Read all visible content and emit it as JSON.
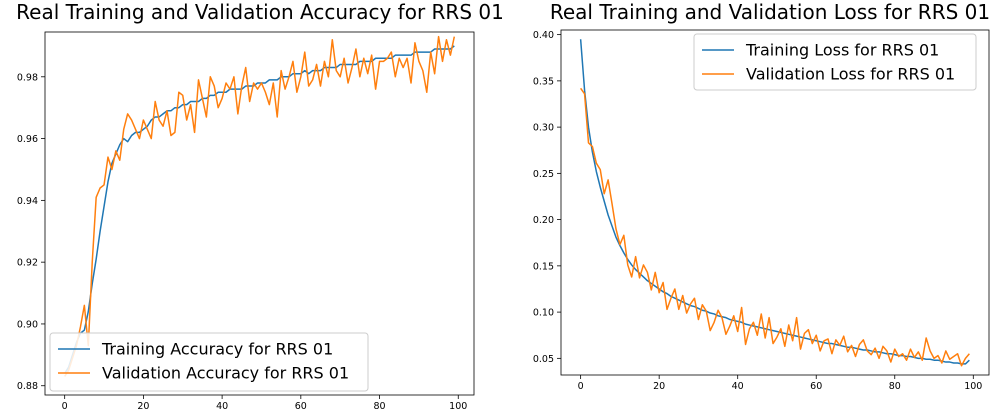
{
  "colors": {
    "training": "#1f77b4",
    "validation": "#ff7f0e"
  },
  "chart_data": [
    {
      "type": "line",
      "title": "Real Training and Validation Accuracy for RRS 01",
      "xlabel": "",
      "ylabel": "",
      "xlim": [
        -5,
        104
      ],
      "ylim": [
        0.877,
        0.9945
      ],
      "xticks": [
        0,
        20,
        40,
        60,
        80,
        100
      ],
      "yticks": [
        0.88,
        0.9,
        0.92,
        0.94,
        0.96,
        0.98
      ],
      "ytick_labels": [
        "0.88",
        "0.90",
        "0.92",
        "0.94",
        "0.96",
        "0.98"
      ],
      "legend_position": "lower-left",
      "grid": false,
      "series": [
        {
          "name": "Training Accuracy for RRS 01",
          "color_key": "training",
          "values": [
            0.884,
            0.886,
            0.89,
            0.894,
            0.897,
            0.898,
            0.904,
            0.913,
            0.921,
            0.93,
            0.938,
            0.946,
            0.952,
            0.955,
            0.958,
            0.96,
            0.959,
            0.961,
            0.962,
            0.962,
            0.963,
            0.964,
            0.966,
            0.967,
            0.967,
            0.968,
            0.969,
            0.969,
            0.97,
            0.97,
            0.971,
            0.971,
            0.972,
            0.972,
            0.972,
            0.973,
            0.973,
            0.974,
            0.974,
            0.975,
            0.975,
            0.975,
            0.976,
            0.976,
            0.976,
            0.976,
            0.977,
            0.977,
            0.977,
            0.978,
            0.978,
            0.978,
            0.979,
            0.979,
            0.979,
            0.98,
            0.98,
            0.98,
            0.981,
            0.981,
            0.981,
            0.982,
            0.981,
            0.982,
            0.982,
            0.982,
            0.983,
            0.983,
            0.983,
            0.983,
            0.984,
            0.984,
            0.984,
            0.984,
            0.984,
            0.985,
            0.985,
            0.985,
            0.985,
            0.986,
            0.986,
            0.986,
            0.986,
            0.986,
            0.987,
            0.987,
            0.987,
            0.987,
            0.987,
            0.988,
            0.988,
            0.988,
            0.988,
            0.988,
            0.989,
            0.989,
            0.989,
            0.989,
            0.989,
            0.99
          ]
        },
        {
          "name": "Validation Accuracy for RRS 01",
          "color_key": "validation",
          "values": [
            0.883,
            0.885,
            0.889,
            0.893,
            0.899,
            0.906,
            0.893,
            0.92,
            0.941,
            0.944,
            0.945,
            0.954,
            0.95,
            0.956,
            0.953,
            0.963,
            0.968,
            0.966,
            0.963,
            0.96,
            0.966,
            0.963,
            0.96,
            0.972,
            0.966,
            0.964,
            0.969,
            0.961,
            0.962,
            0.975,
            0.974,
            0.966,
            0.971,
            0.962,
            0.979,
            0.973,
            0.967,
            0.98,
            0.977,
            0.97,
            0.973,
            0.978,
            0.976,
            0.98,
            0.968,
            0.977,
            0.983,
            0.972,
            0.978,
            0.976,
            0.978,
            0.975,
            0.971,
            0.978,
            0.967,
            0.982,
            0.976,
            0.98,
            0.985,
            0.975,
            0.98,
            0.988,
            0.977,
            0.979,
            0.984,
            0.977,
            0.985,
            0.98,
            0.992,
            0.982,
            0.98,
            0.986,
            0.978,
            0.983,
            0.989,
            0.98,
            0.986,
            0.981,
            0.987,
            0.976,
            0.985,
            0.985,
            0.986,
            0.988,
            0.98,
            0.986,
            0.983,
            0.986,
            0.978,
            0.991,
            0.985,
            0.982,
            0.975,
            0.988,
            0.981,
            0.993,
            0.985,
            0.992,
            0.987,
            0.993
          ]
        }
      ]
    },
    {
      "type": "line",
      "title": "Real Training and Validation Loss for RRS 01",
      "xlabel": "",
      "ylabel": "",
      "xlim": [
        -5,
        104
      ],
      "ylim": [
        0.032,
        0.405
      ],
      "xticks": [
        0,
        20,
        40,
        60,
        80,
        100
      ],
      "yticks": [
        0.05,
        0.1,
        0.15,
        0.2,
        0.25,
        0.3,
        0.35,
        0.4
      ],
      "ytick_labels": [
        "0.05",
        "0.10",
        "0.15",
        "0.20",
        "0.25",
        "0.30",
        "0.35",
        "0.40"
      ],
      "legend_position": "upper-right",
      "grid": false,
      "series": [
        {
          "name": "Training Loss for RRS 01",
          "color_key": "training",
          "values": [
            0.395,
            0.34,
            0.3,
            0.273,
            0.252,
            0.235,
            0.22,
            0.205,
            0.193,
            0.181,
            0.172,
            0.164,
            0.157,
            0.151,
            0.146,
            0.142,
            0.138,
            0.134,
            0.131,
            0.128,
            0.125,
            0.122,
            0.12,
            0.117,
            0.115,
            0.113,
            0.111,
            0.109,
            0.107,
            0.106,
            0.104,
            0.102,
            0.101,
            0.099,
            0.098,
            0.096,
            0.095,
            0.094,
            0.092,
            0.091,
            0.09,
            0.089,
            0.087,
            0.086,
            0.085,
            0.084,
            0.083,
            0.082,
            0.081,
            0.08,
            0.079,
            0.078,
            0.077,
            0.076,
            0.075,
            0.074,
            0.073,
            0.072,
            0.071,
            0.07,
            0.069,
            0.068,
            0.067,
            0.066,
            0.066,
            0.065,
            0.064,
            0.063,
            0.062,
            0.062,
            0.061,
            0.06,
            0.059,
            0.059,
            0.058,
            0.057,
            0.057,
            0.056,
            0.055,
            0.055,
            0.054,
            0.053,
            0.053,
            0.052,
            0.052,
            0.051,
            0.05,
            0.05,
            0.049,
            0.049,
            0.048,
            0.048,
            0.047,
            0.046,
            0.046,
            0.045,
            0.045,
            0.044,
            0.044,
            0.048
          ]
        },
        {
          "name": "Validation Loss for RRS 01",
          "color_key": "validation",
          "values": [
            0.342,
            0.336,
            0.283,
            0.279,
            0.261,
            0.254,
            0.228,
            0.243,
            0.217,
            0.19,
            0.173,
            0.183,
            0.151,
            0.138,
            0.16,
            0.137,
            0.151,
            0.143,
            0.124,
            0.143,
            0.121,
            0.132,
            0.103,
            0.115,
            0.125,
            0.103,
            0.118,
            0.099,
            0.109,
            0.115,
            0.092,
            0.108,
            0.101,
            0.08,
            0.089,
            0.102,
            0.094,
            0.076,
            0.085,
            0.096,
            0.079,
            0.105,
            0.065,
            0.082,
            0.089,
            0.075,
            0.098,
            0.072,
            0.094,
            0.066,
            0.073,
            0.082,
            0.063,
            0.086,
            0.069,
            0.094,
            0.06,
            0.077,
            0.081,
            0.066,
            0.075,
            0.058,
            0.069,
            0.071,
            0.055,
            0.07,
            0.064,
            0.074,
            0.057,
            0.064,
            0.052,
            0.065,
            0.07,
            0.058,
            0.054,
            0.061,
            0.05,
            0.063,
            0.058,
            0.046,
            0.06,
            0.052,
            0.055,
            0.048,
            0.06,
            0.051,
            0.057,
            0.048,
            0.072,
            0.058,
            0.05,
            0.053,
            0.045,
            0.058,
            0.049,
            0.052,
            0.055,
            0.042,
            0.05,
            0.055
          ]
        }
      ]
    }
  ]
}
